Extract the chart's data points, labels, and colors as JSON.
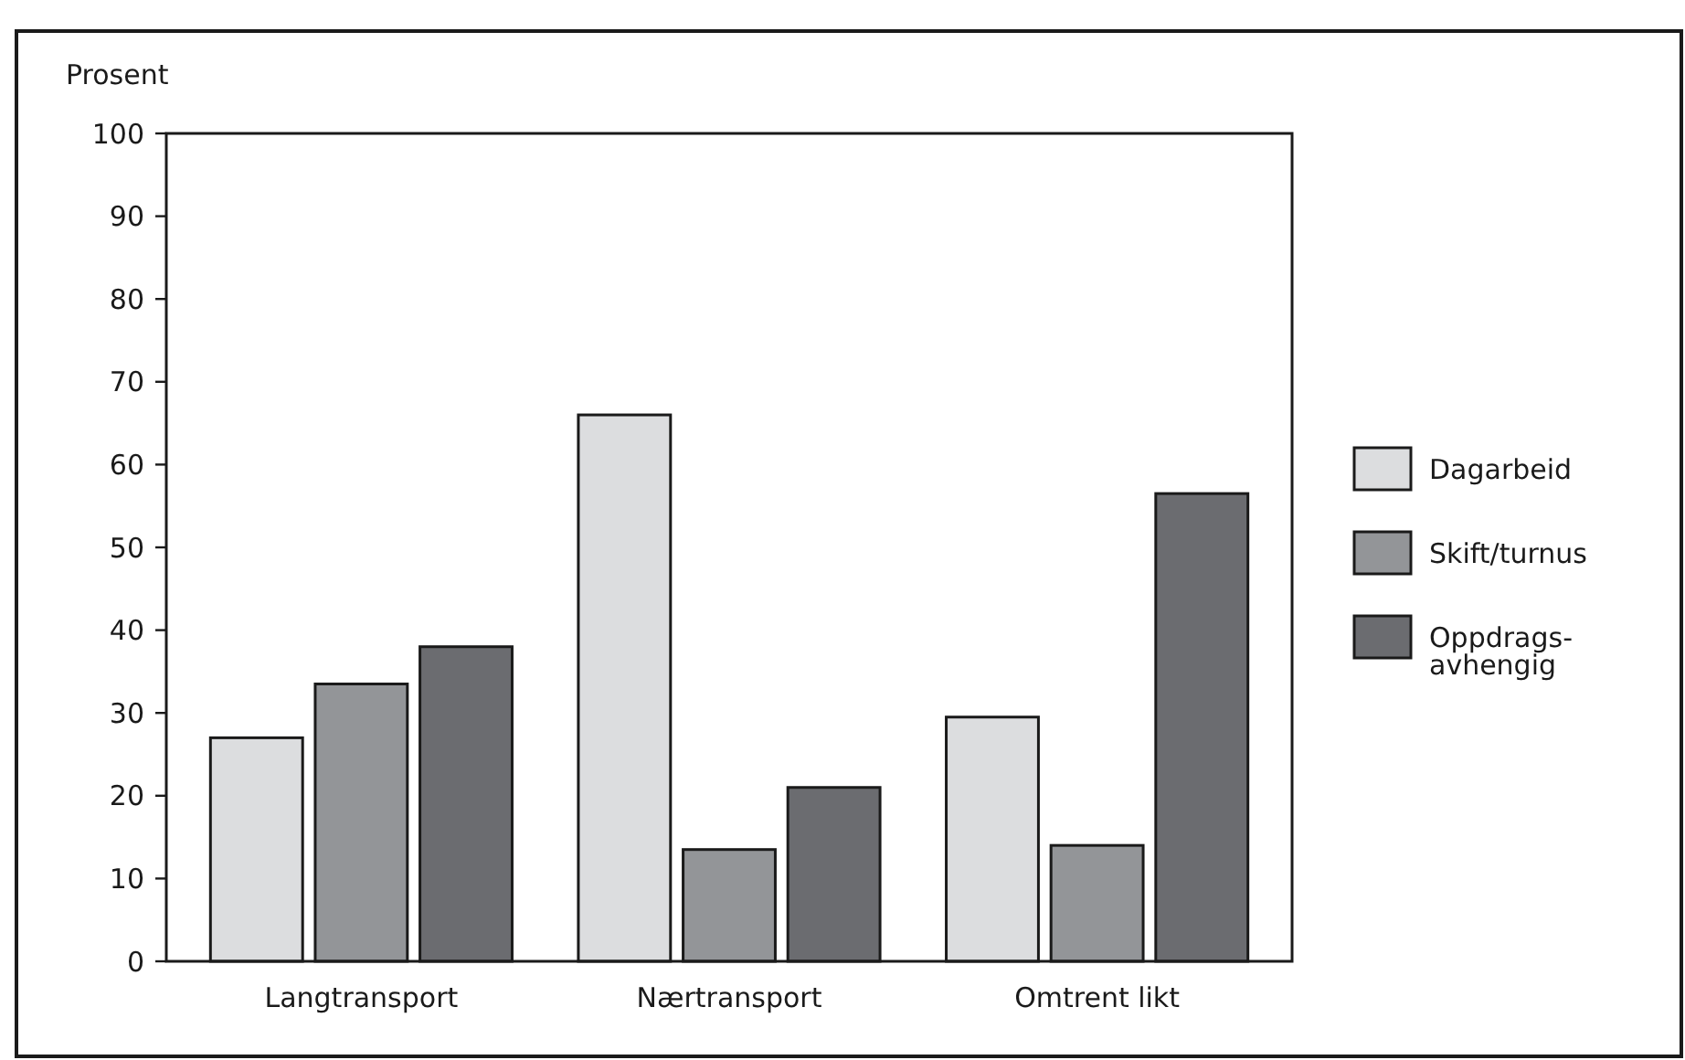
{
  "chart_data": {
    "type": "bar",
    "ylabel": "Prosent",
    "categories": [
      "Langtransport",
      "Nærtransport",
      "Omtrent likt"
    ],
    "series": [
      {
        "name": "Dagarbeid",
        "color": "#dcdddf",
        "values": [
          27,
          66,
          29.5
        ]
      },
      {
        "name": "Skift/turnus",
        "color": "#939598",
        "values": [
          33.5,
          13.5,
          14
        ]
      },
      {
        "name": "Oppdrags-\navhengig",
        "color": "#6b6c70",
        "values": [
          38,
          21,
          56.5
        ]
      }
    ],
    "ylim": [
      0,
      100
    ],
    "yticks": [
      0,
      10,
      20,
      30,
      40,
      50,
      60,
      70,
      80,
      90,
      100
    ],
    "grid": false,
    "legend": "right"
  }
}
